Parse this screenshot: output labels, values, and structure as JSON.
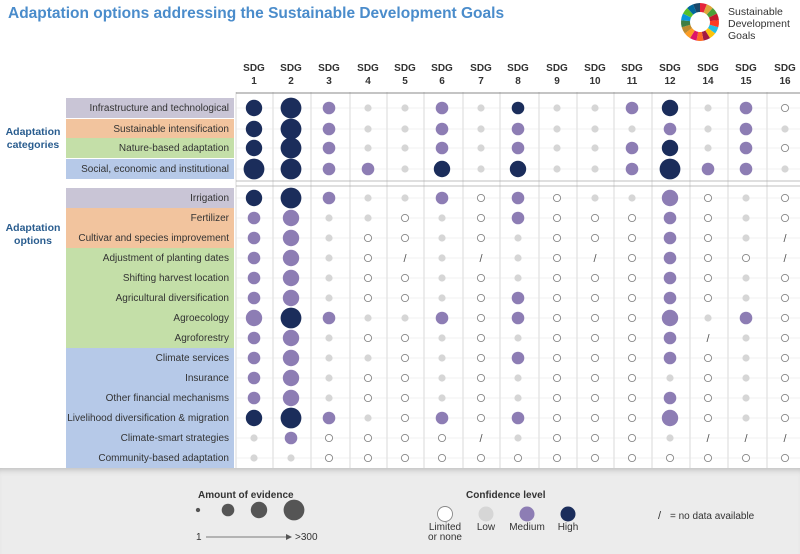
{
  "title": "Adaptation options addressing the Sustainable Development Goals",
  "logo_text": [
    "Sustainable",
    "Development",
    "Goals"
  ],
  "side_labels": {
    "categories": [
      "Adaptation",
      "categories"
    ],
    "options": [
      "Adaptation",
      "options"
    ]
  },
  "colors": {
    "high": "#1b2d5b",
    "medium": "#8d7db4",
    "low": "#d6d6d6",
    "limited": "#ffffff",
    "limited_stroke": "#888888",
    "band_gray": "#c9c5d6",
    "band_orange": "#f2c49e",
    "band_green": "#c4dfa8",
    "band_blue": "#b6c9e8",
    "title": "#4a8ccb"
  },
  "chart_data": {
    "type": "bubble-matrix",
    "columns": [
      "SDG 1",
      "SDG 2",
      "SDG 3",
      "SDG 4",
      "SDG 5",
      "SDG 6",
      "SDG 7",
      "SDG 8",
      "SDG 9",
      "SDG 10",
      "SDG 11",
      "SDG 12",
      "SDG 14",
      "SDG 15",
      "SDG 16"
    ],
    "columns_split": [
      [
        "SDG",
        "1"
      ],
      [
        "SDG",
        "2"
      ],
      [
        "SDG",
        "3"
      ],
      [
        "SDG",
        "4"
      ],
      [
        "SDG",
        "5"
      ],
      [
        "SDG",
        "6"
      ],
      [
        "SDG",
        "7"
      ],
      [
        "SDG",
        "8"
      ],
      [
        "SDG",
        "9"
      ],
      [
        "SDG",
        "10"
      ],
      [
        "SDG",
        "11"
      ],
      [
        "SDG",
        "12"
      ],
      [
        "SDG",
        "14"
      ],
      [
        "SDG",
        "15"
      ],
      [
        "SDG",
        "16"
      ]
    ],
    "legend_note": "cell value = [amount of evidence 0-4, confidence: N=no data, L=limited or none, W=low, M=medium, H=high]",
    "rows": [
      {
        "label": "Infrastructure and technological",
        "group": "category",
        "band": "gray",
        "cells": [
          [
            3,
            "H"
          ],
          [
            4,
            "H"
          ],
          [
            2,
            "M"
          ],
          [
            1,
            "W"
          ],
          [
            1,
            "W"
          ],
          [
            2,
            "M"
          ],
          [
            1,
            "W"
          ],
          [
            2,
            "H"
          ],
          [
            1,
            "W"
          ],
          [
            1,
            "W"
          ],
          [
            2,
            "M"
          ],
          [
            3,
            "H"
          ],
          [
            1,
            "W"
          ],
          [
            2,
            "M"
          ],
          [
            1,
            "L"
          ]
        ]
      },
      {
        "label": "Sustainable intensification",
        "group": "category",
        "band": "orange",
        "cells": [
          [
            3,
            "H"
          ],
          [
            4,
            "H"
          ],
          [
            2,
            "M"
          ],
          [
            1,
            "W"
          ],
          [
            1,
            "W"
          ],
          [
            2,
            "M"
          ],
          [
            1,
            "W"
          ],
          [
            2,
            "M"
          ],
          [
            1,
            "W"
          ],
          [
            1,
            "W"
          ],
          [
            1,
            "W"
          ],
          [
            2,
            "M"
          ],
          [
            1,
            "W"
          ],
          [
            2,
            "M"
          ],
          [
            1,
            "W"
          ]
        ]
      },
      {
        "label": "Nature-based adaptation",
        "group": "category",
        "band": "green",
        "cells": [
          [
            3,
            "H"
          ],
          [
            4,
            "H"
          ],
          [
            2,
            "M"
          ],
          [
            1,
            "W"
          ],
          [
            1,
            "W"
          ],
          [
            2,
            "M"
          ],
          [
            1,
            "W"
          ],
          [
            2,
            "M"
          ],
          [
            1,
            "W"
          ],
          [
            1,
            "W"
          ],
          [
            2,
            "M"
          ],
          [
            3,
            "H"
          ],
          [
            1,
            "W"
          ],
          [
            2,
            "M"
          ],
          [
            1,
            "L"
          ]
        ]
      },
      {
        "label": "Social, economic and institutional",
        "group": "category",
        "band": "blue",
        "cells": [
          [
            4,
            "H"
          ],
          [
            4,
            "H"
          ],
          [
            2,
            "M"
          ],
          [
            2,
            "M"
          ],
          [
            1,
            "W"
          ],
          [
            3,
            "H"
          ],
          [
            1,
            "W"
          ],
          [
            3,
            "H"
          ],
          [
            1,
            "W"
          ],
          [
            1,
            "W"
          ],
          [
            2,
            "M"
          ],
          [
            4,
            "H"
          ],
          [
            2,
            "M"
          ],
          [
            2,
            "M"
          ],
          [
            1,
            "W"
          ]
        ]
      },
      {
        "label": "Irrigation",
        "group": "option",
        "band": "gray",
        "cells": [
          [
            3,
            "H"
          ],
          [
            4,
            "H"
          ],
          [
            2,
            "M"
          ],
          [
            1,
            "W"
          ],
          [
            1,
            "W"
          ],
          [
            2,
            "M"
          ],
          [
            1,
            "L"
          ],
          [
            2,
            "M"
          ],
          [
            1,
            "L"
          ],
          [
            1,
            "W"
          ],
          [
            1,
            "W"
          ],
          [
            3,
            "M"
          ],
          [
            1,
            "L"
          ],
          [
            1,
            "W"
          ],
          [
            1,
            "L"
          ]
        ]
      },
      {
        "label": "Fertilizer",
        "group": "option",
        "band": "orange",
        "cells": [
          [
            2,
            "M"
          ],
          [
            3,
            "M"
          ],
          [
            1,
            "W"
          ],
          [
            1,
            "W"
          ],
          [
            1,
            "L"
          ],
          [
            1,
            "W"
          ],
          [
            1,
            "L"
          ],
          [
            2,
            "M"
          ],
          [
            1,
            "L"
          ],
          [
            1,
            "L"
          ],
          [
            1,
            "L"
          ],
          [
            2,
            "M"
          ],
          [
            1,
            "L"
          ],
          [
            1,
            "W"
          ],
          [
            1,
            "L"
          ]
        ]
      },
      {
        "label": "Cultivar and species improvement",
        "group": "option",
        "band": "orange",
        "cells": [
          [
            2,
            "M"
          ],
          [
            3,
            "M"
          ],
          [
            1,
            "W"
          ],
          [
            1,
            "L"
          ],
          [
            1,
            "L"
          ],
          [
            1,
            "W"
          ],
          [
            1,
            "L"
          ],
          [
            1,
            "W"
          ],
          [
            1,
            "L"
          ],
          [
            1,
            "L"
          ],
          [
            1,
            "L"
          ],
          [
            2,
            "M"
          ],
          [
            1,
            "L"
          ],
          [
            1,
            "W"
          ],
          [
            0,
            "N"
          ]
        ]
      },
      {
        "label": "Adjustment of planting dates",
        "group": "option",
        "band": "green",
        "cells": [
          [
            2,
            "M"
          ],
          [
            3,
            "M"
          ],
          [
            1,
            "W"
          ],
          [
            1,
            "L"
          ],
          [
            0,
            "N"
          ],
          [
            1,
            "W"
          ],
          [
            0,
            "N"
          ],
          [
            1,
            "W"
          ],
          [
            1,
            "L"
          ],
          [
            0,
            "N"
          ],
          [
            1,
            "L"
          ],
          [
            2,
            "M"
          ],
          [
            1,
            "L"
          ],
          [
            1,
            "L"
          ],
          [
            0,
            "N"
          ]
        ]
      },
      {
        "label": "Shifting harvest location",
        "group": "option",
        "band": "green",
        "cells": [
          [
            2,
            "M"
          ],
          [
            3,
            "M"
          ],
          [
            1,
            "W"
          ],
          [
            1,
            "L"
          ],
          [
            1,
            "L"
          ],
          [
            1,
            "W"
          ],
          [
            1,
            "L"
          ],
          [
            1,
            "W"
          ],
          [
            1,
            "L"
          ],
          [
            1,
            "L"
          ],
          [
            1,
            "L"
          ],
          [
            2,
            "M"
          ],
          [
            1,
            "L"
          ],
          [
            1,
            "W"
          ],
          [
            1,
            "L"
          ]
        ]
      },
      {
        "label": "Agricultural diversification",
        "group": "option",
        "band": "green",
        "cells": [
          [
            2,
            "M"
          ],
          [
            3,
            "M"
          ],
          [
            1,
            "W"
          ],
          [
            1,
            "L"
          ],
          [
            1,
            "L"
          ],
          [
            1,
            "W"
          ],
          [
            1,
            "L"
          ],
          [
            2,
            "M"
          ],
          [
            1,
            "L"
          ],
          [
            1,
            "L"
          ],
          [
            1,
            "L"
          ],
          [
            2,
            "M"
          ],
          [
            1,
            "L"
          ],
          [
            1,
            "W"
          ],
          [
            1,
            "L"
          ]
        ]
      },
      {
        "label": "Agroecology",
        "group": "option",
        "band": "green",
        "cells": [
          [
            3,
            "M"
          ],
          [
            4,
            "H"
          ],
          [
            2,
            "M"
          ],
          [
            1,
            "W"
          ],
          [
            1,
            "W"
          ],
          [
            2,
            "M"
          ],
          [
            1,
            "L"
          ],
          [
            2,
            "M"
          ],
          [
            1,
            "L"
          ],
          [
            1,
            "L"
          ],
          [
            1,
            "L"
          ],
          [
            3,
            "M"
          ],
          [
            1,
            "W"
          ],
          [
            2,
            "M"
          ],
          [
            1,
            "L"
          ]
        ]
      },
      {
        "label": "Agroforestry",
        "group": "option",
        "band": "green",
        "cells": [
          [
            2,
            "M"
          ],
          [
            3,
            "M"
          ],
          [
            1,
            "W"
          ],
          [
            1,
            "L"
          ],
          [
            1,
            "L"
          ],
          [
            1,
            "W"
          ],
          [
            1,
            "L"
          ],
          [
            1,
            "W"
          ],
          [
            1,
            "L"
          ],
          [
            1,
            "L"
          ],
          [
            1,
            "L"
          ],
          [
            2,
            "M"
          ],
          [
            0,
            "N"
          ],
          [
            1,
            "W"
          ],
          [
            1,
            "L"
          ]
        ]
      },
      {
        "label": "Climate services",
        "group": "option",
        "band": "blue",
        "cells": [
          [
            2,
            "M"
          ],
          [
            3,
            "M"
          ],
          [
            1,
            "W"
          ],
          [
            1,
            "W"
          ],
          [
            1,
            "L"
          ],
          [
            1,
            "W"
          ],
          [
            1,
            "L"
          ],
          [
            2,
            "M"
          ],
          [
            1,
            "L"
          ],
          [
            1,
            "L"
          ],
          [
            1,
            "L"
          ],
          [
            2,
            "M"
          ],
          [
            1,
            "L"
          ],
          [
            1,
            "W"
          ],
          [
            1,
            "L"
          ]
        ]
      },
      {
        "label": "Insurance",
        "group": "option",
        "band": "blue",
        "cells": [
          [
            2,
            "M"
          ],
          [
            3,
            "M"
          ],
          [
            1,
            "W"
          ],
          [
            1,
            "L"
          ],
          [
            1,
            "L"
          ],
          [
            1,
            "W"
          ],
          [
            1,
            "L"
          ],
          [
            1,
            "W"
          ],
          [
            1,
            "L"
          ],
          [
            1,
            "L"
          ],
          [
            1,
            "L"
          ],
          [
            1,
            "W"
          ],
          [
            1,
            "L"
          ],
          [
            1,
            "W"
          ],
          [
            1,
            "L"
          ]
        ]
      },
      {
        "label": "Other financial mechanisms",
        "group": "option",
        "band": "blue",
        "cells": [
          [
            2,
            "M"
          ],
          [
            3,
            "M"
          ],
          [
            1,
            "W"
          ],
          [
            1,
            "L"
          ],
          [
            1,
            "L"
          ],
          [
            1,
            "W"
          ],
          [
            1,
            "L"
          ],
          [
            1,
            "W"
          ],
          [
            1,
            "L"
          ],
          [
            1,
            "L"
          ],
          [
            1,
            "L"
          ],
          [
            2,
            "M"
          ],
          [
            1,
            "L"
          ],
          [
            1,
            "W"
          ],
          [
            1,
            "L"
          ]
        ]
      },
      {
        "label": "Livelihood diversification & migration",
        "group": "option",
        "band": "blue",
        "cells": [
          [
            3,
            "H"
          ],
          [
            4,
            "H"
          ],
          [
            2,
            "M"
          ],
          [
            1,
            "W"
          ],
          [
            1,
            "L"
          ],
          [
            2,
            "M"
          ],
          [
            1,
            "L"
          ],
          [
            2,
            "M"
          ],
          [
            1,
            "L"
          ],
          [
            1,
            "L"
          ],
          [
            1,
            "L"
          ],
          [
            3,
            "M"
          ],
          [
            1,
            "L"
          ],
          [
            1,
            "W"
          ],
          [
            1,
            "L"
          ]
        ]
      },
      {
        "label": "Climate-smart strategies",
        "group": "option",
        "band": "blue",
        "cells": [
          [
            1,
            "W"
          ],
          [
            2,
            "M"
          ],
          [
            1,
            "L"
          ],
          [
            1,
            "L"
          ],
          [
            1,
            "L"
          ],
          [
            1,
            "L"
          ],
          [
            0,
            "N"
          ],
          [
            1,
            "W"
          ],
          [
            1,
            "L"
          ],
          [
            1,
            "L"
          ],
          [
            1,
            "L"
          ],
          [
            1,
            "W"
          ],
          [
            0,
            "N"
          ],
          [
            0,
            "N"
          ],
          [
            0,
            "N"
          ]
        ]
      },
      {
        "label": "Community-based adaptation",
        "group": "option",
        "band": "blue",
        "cells": [
          [
            1,
            "W"
          ],
          [
            1,
            "W"
          ],
          [
            1,
            "L"
          ],
          [
            1,
            "L"
          ],
          [
            1,
            "L"
          ],
          [
            1,
            "L"
          ],
          [
            1,
            "L"
          ],
          [
            1,
            "L"
          ],
          [
            1,
            "L"
          ],
          [
            1,
            "L"
          ],
          [
            1,
            "L"
          ],
          [
            1,
            "L"
          ],
          [
            1,
            "L"
          ],
          [
            1,
            "L"
          ],
          [
            1,
            "L"
          ]
        ]
      }
    ]
  },
  "footer": {
    "evidence_title": "Amount of evidence",
    "evidence_min": "1",
    "evidence_max": ">300",
    "confidence_title": "Confidence level",
    "confidence_levels": [
      "Limited or none",
      "Low",
      "Medium",
      "High"
    ],
    "confidence_levels_split": [
      [
        "Limited",
        "or none"
      ],
      [
        "Low",
        ""
      ],
      [
        "Medium",
        ""
      ],
      [
        "High",
        ""
      ]
    ],
    "no_data_symbol": "/",
    "no_data_note": "= no data available"
  }
}
